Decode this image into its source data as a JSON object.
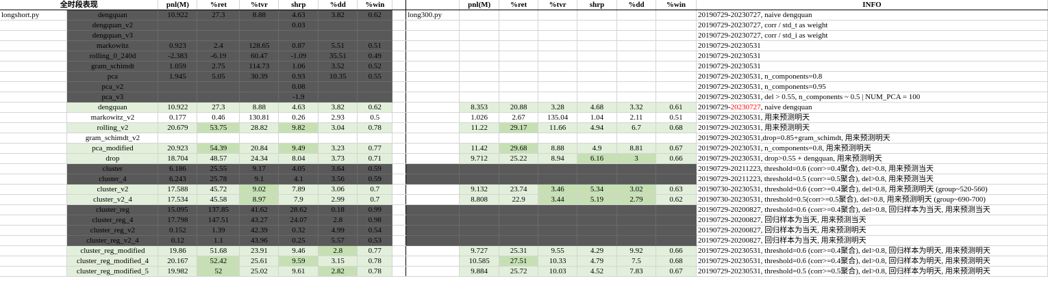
{
  "header": {
    "left_title": "全时段表现",
    "cols": [
      "pnl(M)",
      "%ret",
      "%tvr",
      "shrp",
      "%dd",
      "%win"
    ],
    "info": "INFO"
  },
  "labels": {
    "left_file": "longshort.py",
    "right_file": "long300.py"
  },
  "rows": [
    {
      "name": "dengquan",
      "L": [
        "10.922",
        "27.3",
        "8.88",
        "4.63",
        "3.82",
        "0.62"
      ],
      "R": [
        "",
        "",
        "",
        "",
        "",
        ""
      ],
      "info": "20190729-20230727, naive dengquan"
    },
    {
      "name": "dengquan_v2",
      "L": [
        "",
        "",
        "",
        "0.03",
        "",
        ""
      ],
      "R": [
        "",
        "",
        "",
        "",
        "",
        ""
      ],
      "info": "20190729-20230727, corr / std_t as weight"
    },
    {
      "name": "dengquan_v3",
      "L": [
        "",
        "",
        "",
        "",
        "",
        ""
      ],
      "R": [
        "",
        "",
        "",
        "",
        "",
        ""
      ],
      "info": "20190729-20230727, corr / std_i as weight"
    },
    {
      "name": "markowitz",
      "L": [
        "0.923",
        "2.4",
        "128.65",
        "0.87",
        "5.51",
        "0.51"
      ],
      "R": [
        "",
        "",
        "",
        "",
        "",
        ""
      ],
      "info": "20190729-20230531"
    },
    {
      "name": "rolling_0_240d",
      "L": [
        "-2.383",
        "-6.19",
        "60.47",
        "-1.09",
        "35.51",
        "0.49"
      ],
      "R": [
        "",
        "",
        "",
        "",
        "",
        ""
      ],
      "info": "20190729-20230531"
    },
    {
      "name": "gram_schimdt",
      "L": [
        "1.059",
        "2.75",
        "114.73",
        "1.06",
        "3.52",
        "0.52"
      ],
      "R": [
        "",
        "",
        "",
        "",
        "",
        ""
      ],
      "info": "20190729-20230531"
    },
    {
      "name": "pca",
      "L": [
        "1.945",
        "5.05",
        "30.39",
        "0.93",
        "10.35",
        "0.55"
      ],
      "R": [
        "",
        "",
        "",
        "",
        "",
        ""
      ],
      "info": "20190729-20230531, n_components=0.8"
    },
    {
      "name": "pca_v2",
      "L": [
        "",
        "",
        "",
        "0.08",
        "",
        ""
      ],
      "R": [
        "",
        "",
        "",
        "",
        "",
        ""
      ],
      "info": "20190729-20230531, n_components=0.95"
    },
    {
      "name": "pca_v3",
      "L": [
        "",
        "",
        "",
        "-1.9",
        "",
        ""
      ],
      "R": [
        "",
        "",
        "",
        "",
        "",
        ""
      ],
      "info": "20190729-20230531, del > 0.55, n_components ~ 0.5 | NUM_PCA = 100"
    },
    {
      "name": "dengquan",
      "L": [
        "10.922",
        "27.3",
        "8.88",
        "4.63",
        "3.82",
        "0.62"
      ],
      "R": [
        "8.353",
        "20.88",
        "3.28",
        "4.68",
        "3.32",
        "0.61"
      ],
      "info": "20190729-",
      "info_red": "20230727",
      "info2": ", naive dengquan"
    },
    {
      "name": "markowitz_v2",
      "L": [
        "0.177",
        "0.46",
        "130.81",
        "0.26",
        "2.93",
        "0.5"
      ],
      "R": [
        "1.026",
        "2.67",
        "135.04",
        "1.04",
        "2.11",
        "0.51"
      ],
      "info": "20190729-20230531, 用来预测明天"
    },
    {
      "name": "rolling_v2",
      "L": [
        "20.679",
        "53.75",
        "28.82",
        "9.82",
        "3.04",
        "0.78"
      ],
      "R": [
        "11.22",
        "29.17",
        "11.66",
        "4.94",
        "6.7",
        "0.68"
      ],
      "info": "20190729-20230531, 用来预测明天"
    },
    {
      "name": "gram_schimdt_v2",
      "L": [
        "",
        "",
        "",
        "",
        "",
        ""
      ],
      "R": [
        "",
        "",
        "",
        "",
        "",
        ""
      ],
      "info": "20190729-20230531,drop=0.85+gram_schimdt, 用来预测明天"
    },
    {
      "name": "pca_modified",
      "L": [
        "20.923",
        "54.39",
        "20.84",
        "9.49",
        "3.23",
        "0.77"
      ],
      "R": [
        "11.42",
        "29.68",
        "8.88",
        "4.9",
        "8.81",
        "0.67"
      ],
      "info": "20190729-20230531, n_components=0.8, 用来预测明天"
    },
    {
      "name": "drop",
      "L": [
        "18.704",
        "48.57",
        "24.34",
        "8.04",
        "3.73",
        "0.71"
      ],
      "R": [
        "9.712",
        "25.22",
        "8.94",
        "6.16",
        "3",
        "0.66"
      ],
      "info": "20190729-20230531, drop>0.55 + dengquan, 用来预测明天"
    },
    {
      "name": "cluster",
      "L": [
        "6.186",
        "25.55",
        "9.17",
        "4.05",
        "3.64",
        "0.59"
      ],
      "R": [
        "",
        "",
        "",
        "",
        "",
        ""
      ],
      "info": "20190729-20211223, threshold=0.6 (corr>=0.4聚合), del>0.8, 用来预测当天"
    },
    {
      "name": "cluster_4",
      "L": [
        "6.243",
        "25.78",
        "9.1",
        "4.1",
        "3.56",
        "0.59"
      ],
      "R": [
        "",
        "",
        "",
        "",
        "",
        ""
      ],
      "info": "20190729-20211223, threshold=0.5 (corr>=0.5聚合), del>0.8, 用来预测当天"
    },
    {
      "name": "cluster_v2",
      "L": [
        "17.588",
        "45.72",
        "9.02",
        "7.89",
        "3.06",
        "0.7"
      ],
      "R": [
        "9.132",
        "23.74",
        "3.46",
        "5.34",
        "3.02",
        "0.63"
      ],
      "info": "20190730-20230531, threshold=0.6 (corr>=0.4聚合), del>0.8, 用来预测明天 (group~520-560)"
    },
    {
      "name": "cluster_v2_4",
      "L": [
        "17.534",
        "45.58",
        "8.97",
        "7.9",
        "2.99",
        "0.7"
      ],
      "R": [
        "8.808",
        "22.9",
        "3.44",
        "5.19",
        "2.79",
        "0.62"
      ],
      "info": "20190730-20230531, threshold=0.5(corr>=0.5聚合), del>0.8, 用来预测明天 (group~690-700)"
    },
    {
      "name": "cluster_reg",
      "L": [
        "15.095",
        "137.85",
        "41.62",
        "28.62",
        "0.18",
        "0.99"
      ],
      "R": [
        "",
        "",
        "",
        "",
        "",
        ""
      ],
      "info": "20190729-20200827, threshold=0.6 (corr>=0.4聚合), del>0.8, 回归样本为当天, 用来预测当天"
    },
    {
      "name": "cluster_reg_4",
      "L": [
        "17.798",
        "147.51",
        "43.27",
        "24.07",
        "2.8",
        "0.98"
      ],
      "R": [
        "",
        "",
        "",
        "",
        "",
        ""
      ],
      "info": "20190729-20200827, 回归样本为当天, 用来预测当天"
    },
    {
      "name": "cluster_reg_v2",
      "L": [
        "0.152",
        "1.39",
        "42.39",
        "0.32",
        "4.99",
        "0.54"
      ],
      "R": [
        "",
        "",
        "",
        "",
        "",
        ""
      ],
      "info": "20190729-20200827, 回归样本为当天, 用来预测明天"
    },
    {
      "name": "cluster_reg_v2_4",
      "L": [
        "0.12",
        "1.1",
        "43.96",
        "0.25",
        "5.57",
        "0.53"
      ],
      "R": [
        "",
        "",
        "",
        "",
        "",
        ""
      ],
      "info": "20190729-20200827, 回归样本为当天, 用来预测明天"
    },
    {
      "name": "cluster_reg_modified",
      "L": [
        "19.86",
        "51.68",
        "23.91",
        "9.46",
        "2.8",
        "0.77"
      ],
      "R": [
        "9.727",
        "25.31",
        "9.55",
        "4.29",
        "9.92",
        "0.66"
      ],
      "info": "20190729-20230531, threshold=0.6 (corr>=0.4聚合), del>0.8, 回归样本为明天, 用来预测明天"
    },
    {
      "name": "cluster_reg_modified_4",
      "L": [
        "20.167",
        "52.42",
        "25.61",
        "9.59",
        "3.15",
        "0.78"
      ],
      "R": [
        "10.585",
        "27.51",
        "10.33",
        "4.79",
        "7.5",
        "0.68"
      ],
      "info": "20190729-20230531, threshold=0.6 (corr>=0.4聚合), del>0.8, 回归样本为明天, 用来预测明天"
    },
    {
      "name": "cluster_reg_modified_5",
      "L": [
        "19.982",
        "52",
        "25.02",
        "9.61",
        "2.82",
        "0.78"
      ],
      "R": [
        "9.884",
        "25.72",
        "10.03",
        "4.52",
        "7.83",
        "0.67"
      ],
      "info": "20190729-20230531, threshold=0.5 (corr>=0.5聚合), del>0.8, 回归样本为明天, 用来预测明天"
    }
  ],
  "styles": {
    "left_bg": [
      "dark",
      "dark",
      "dark",
      "dark",
      "dark",
      "dark",
      "dark",
      "dark",
      "dark",
      "pale",
      "white",
      "pale",
      "white",
      "pale",
      "pale",
      "dark",
      "dark",
      "pale",
      "pale",
      "dark",
      "dark",
      "dark",
      "dark",
      "pale",
      "pale",
      "pale"
    ],
    "right_bg": [
      "white",
      "white",
      "white",
      "white",
      "white",
      "white",
      "white",
      "white",
      "white",
      "pale",
      "white",
      "pale",
      "white",
      "pale",
      "pale",
      "dark",
      "dark",
      "pale",
      "pale",
      "dark",
      "dark",
      "dark",
      "dark",
      "pale",
      "pale",
      "pale"
    ],
    "left_hi": {
      "11": [
        1,
        3
      ],
      "13": [
        1,
        3
      ],
      "17": [
        2
      ],
      "18": [
        2
      ],
      "23": [
        4
      ],
      "24": [
        1,
        3
      ],
      "25": [
        1,
        4
      ]
    },
    "right_hi": {
      "11": [
        1
      ],
      "13": [
        1
      ],
      "14": [
        3,
        4
      ],
      "17": [
        2,
        3,
        4
      ],
      "18": [
        2,
        3,
        4
      ],
      "24": [
        1
      ]
    }
  },
  "colors": {
    "dark": "#595959",
    "pale": "#e2efda",
    "green": "#c6e0b4",
    "red": "#ff0000"
  }
}
